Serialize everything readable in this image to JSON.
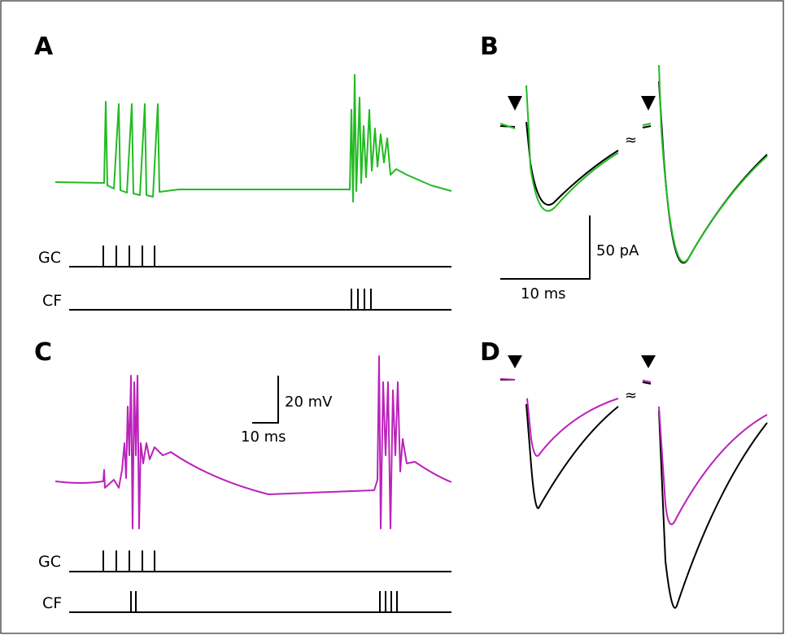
{
  "panels": {
    "a": {
      "label": "A",
      "rows": [
        "GC",
        "CF"
      ]
    },
    "b": {
      "label": "B",
      "scale_v": "50 pA",
      "scale_h": "10 ms"
    },
    "c": {
      "label": "C",
      "rows": [
        "GC",
        "CF"
      ],
      "scale_v": "20 mV",
      "scale_h": "10 ms"
    },
    "d": {
      "label": "D"
    }
  }
}
